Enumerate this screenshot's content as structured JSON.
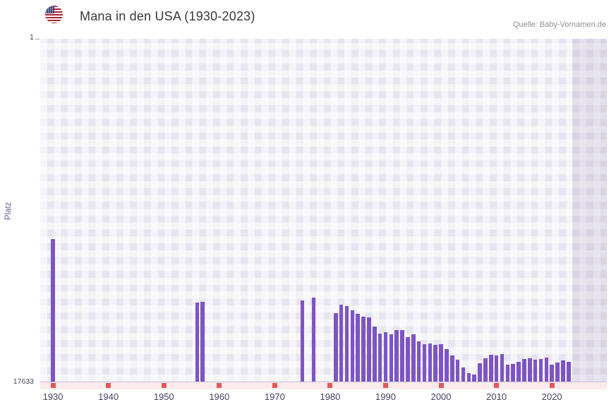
{
  "header": {
    "title": "Mana in den USA (1930-2023)",
    "source": "Quelle: Baby-Vornamen.de",
    "flag_icon": "us-flag-icon"
  },
  "chart_data": {
    "type": "bar",
    "title": "Mana in den USA (1930-2023)",
    "xlabel": "",
    "ylabel": "Platz",
    "y_axis": {
      "top_label": "1",
      "bottom_label": "17633",
      "min": 1,
      "max": 17633,
      "inverted": true
    },
    "x_ticks": [
      1930,
      1940,
      1950,
      1960,
      1970,
      1980,
      1990,
      2000,
      2010,
      2020
    ],
    "x_range": [
      1927.7,
      2029.9
    ],
    "no_data_band_start": 2023.6,
    "bar_color": "#7d55c3",
    "decade_marker_color": "#e05a5a",
    "grid": true,
    "legend": "none",
    "points": [
      {
        "year": 1930,
        "rank": 10300
      },
      {
        "year": 1956,
        "rank": 13560
      },
      {
        "year": 1957,
        "rank": 13530
      },
      {
        "year": 1975,
        "rank": 13450
      },
      {
        "year": 1977,
        "rank": 13310
      },
      {
        "year": 1981,
        "rank": 14100
      },
      {
        "year": 1982,
        "rank": 13680
      },
      {
        "year": 1983,
        "rank": 13760
      },
      {
        "year": 1984,
        "rank": 13960
      },
      {
        "year": 1985,
        "rank": 14140
      },
      {
        "year": 1986,
        "rank": 14290
      },
      {
        "year": 1987,
        "rank": 14330
      },
      {
        "year": 1988,
        "rank": 14790
      },
      {
        "year": 1989,
        "rank": 15180
      },
      {
        "year": 1990,
        "rank": 15080
      },
      {
        "year": 1991,
        "rank": 15220
      },
      {
        "year": 1992,
        "rank": 15000
      },
      {
        "year": 1993,
        "rank": 14970
      },
      {
        "year": 1994,
        "rank": 15360
      },
      {
        "year": 1995,
        "rank": 15220
      },
      {
        "year": 1996,
        "rank": 15580
      },
      {
        "year": 1997,
        "rank": 15720
      },
      {
        "year": 1998,
        "rank": 15690
      },
      {
        "year": 1999,
        "rank": 15760
      },
      {
        "year": 2000,
        "rank": 15720
      },
      {
        "year": 2001,
        "rank": 15980
      },
      {
        "year": 2002,
        "rank": 16300
      },
      {
        "year": 2003,
        "rank": 16520
      },
      {
        "year": 2004,
        "rank": 16910
      },
      {
        "year": 2005,
        "rank": 17200
      },
      {
        "year": 2006,
        "rank": 17270
      },
      {
        "year": 2007,
        "rank": 16700
      },
      {
        "year": 2008,
        "rank": 16440
      },
      {
        "year": 2009,
        "rank": 16260
      },
      {
        "year": 2010,
        "rank": 16300
      },
      {
        "year": 2011,
        "rank": 16230
      },
      {
        "year": 2012,
        "rank": 16770
      },
      {
        "year": 2013,
        "rank": 16730
      },
      {
        "year": 2014,
        "rank": 16620
      },
      {
        "year": 2015,
        "rank": 16480
      },
      {
        "year": 2016,
        "rank": 16440
      },
      {
        "year": 2017,
        "rank": 16520
      },
      {
        "year": 2018,
        "rank": 16480
      },
      {
        "year": 2019,
        "rank": 16410
      },
      {
        "year": 2020,
        "rank": 16770
      },
      {
        "year": 2021,
        "rank": 16660
      },
      {
        "year": 2022,
        "rank": 16560
      },
      {
        "year": 2023,
        "rank": 16620
      }
    ]
  }
}
